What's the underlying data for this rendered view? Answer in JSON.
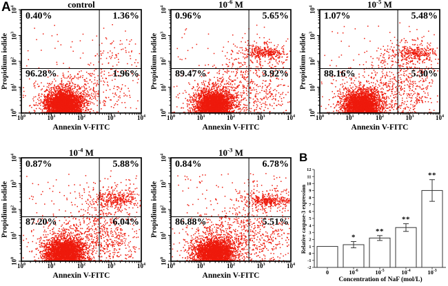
{
  "figure": {
    "panel_a_label": "A",
    "panel_b_label": "B"
  },
  "colors": {
    "dot": "#ee1a0c",
    "axis": "#000000",
    "bar_fill": "#ffffff",
    "bar_stroke": "#333333"
  },
  "chart_data": [
    {
      "type": "scatter",
      "title": "control",
      "xlabel": "Annexin V-FITC",
      "ylabel": "Propidium iodide",
      "x_scale": "log",
      "y_scale": "log",
      "xlim": [
        1,
        10000
      ],
      "ylim": [
        1,
        10000
      ],
      "quadrants": {
        "ul": "0.40%",
        "ur": "1.36%",
        "ll": "96.28%",
        "lr": "1.96%"
      }
    },
    {
      "type": "scatter",
      "title": "10^-6 M",
      "xlabel": "Annexin V-FITC",
      "ylabel": "Propidium iodide",
      "x_scale": "log",
      "y_scale": "log",
      "xlim": [
        1,
        10000
      ],
      "ylim": [
        1,
        10000
      ],
      "quadrants": {
        "ul": "0.96%",
        "ur": "5.65%",
        "ll": "89.47%",
        "lr": "3.92%"
      }
    },
    {
      "type": "scatter",
      "title": "10^-5 M",
      "xlabel": "Annexin V-FITC",
      "ylabel": "Propidium iodide",
      "x_scale": "log",
      "y_scale": "log",
      "xlim": [
        1,
        10000
      ],
      "ylim": [
        1,
        10000
      ],
      "quadrants": {
        "ul": "1.07%",
        "ur": "5.48%",
        "ll": "88.16%",
        "lr": "5.30%"
      }
    },
    {
      "type": "scatter",
      "title": "10^-4 M",
      "xlabel": "Annexin V-FITC",
      "ylabel": "Propidium iodide",
      "x_scale": "log",
      "y_scale": "log",
      "xlim": [
        1,
        10000
      ],
      "ylim": [
        1,
        10000
      ],
      "quadrants": {
        "ul": "0.87%",
        "ur": "5.88%",
        "ll": "87.20%",
        "lr": "6.04%"
      }
    },
    {
      "type": "scatter",
      "title": "10^-3 M",
      "xlabel": "Annexin V-FITC",
      "ylabel": "Propidium iodide",
      "x_scale": "log",
      "y_scale": "log",
      "xlim": [
        1,
        10000
      ],
      "ylim": [
        1,
        10000
      ],
      "quadrants": {
        "ul": "0.84%",
        "ur": "6.78%",
        "ll": "86.88%",
        "lr": "5.51%"
      }
    },
    {
      "type": "bar",
      "title": "",
      "categories": [
        "0",
        "10^-6",
        "10^-5",
        "10^-4",
        "10^-3"
      ],
      "values": [
        1.0,
        1.25,
        2.2,
        3.7,
        9.0
      ],
      "errors": [
        0,
        0.45,
        0.35,
        0.55,
        1.55
      ],
      "significance": [
        "",
        "*",
        "**",
        "**",
        "**"
      ],
      "xlabel": "Concentration of NaF (mol/L)",
      "ylabel": "Relative caspase-3 expression",
      "ylim": [
        -2,
        12
      ],
      "ytick_step": 1,
      "grid": false,
      "legend": false
    }
  ],
  "panel_a": {
    "tick_exponents": [
      0,
      1,
      2,
      3,
      4
    ],
    "log_range": [
      0,
      4
    ],
    "quadrant": {
      "x_log": 2.6,
      "y_log": 1.72
    },
    "plots": [
      {
        "seed": 101,
        "uniform_n": 70,
        "clusters": [
          [
            1.42,
            0.3,
            0.3,
            0.26,
            3000
          ],
          [
            1.55,
            0.55,
            0.55,
            0.45,
            600
          ],
          [
            2.2,
            1.15,
            0.5,
            0.45,
            110
          ],
          [
            3.15,
            2.45,
            0.42,
            0.38,
            55
          ],
          [
            3.35,
            0.9,
            0.35,
            0.55,
            40
          ]
        ]
      },
      {
        "seed": 202,
        "uniform_n": 100,
        "clusters": [
          [
            1.42,
            0.3,
            0.3,
            0.26,
            2700
          ],
          [
            1.55,
            0.55,
            0.55,
            0.45,
            650
          ],
          [
            2.5,
            1.6,
            0.5,
            0.5,
            120
          ],
          [
            3.15,
            2.33,
            0.35,
            0.12,
            240
          ],
          [
            3.0,
            2.3,
            0.5,
            0.33,
            140
          ],
          [
            3.1,
            0.8,
            0.45,
            0.55,
            190
          ]
        ]
      },
      {
        "seed": 303,
        "uniform_n": 110,
        "clusters": [
          [
            1.42,
            0.3,
            0.3,
            0.26,
            2650
          ],
          [
            1.55,
            0.55,
            0.55,
            0.45,
            650
          ],
          [
            2.5,
            1.6,
            0.5,
            0.5,
            130
          ],
          [
            3.2,
            2.3,
            0.35,
            0.15,
            230
          ],
          [
            3.0,
            2.3,
            0.5,
            0.35,
            150
          ],
          [
            3.1,
            0.75,
            0.45,
            0.55,
            240
          ]
        ]
      },
      {
        "seed": 404,
        "uniform_n": 120,
        "clusters": [
          [
            1.45,
            0.3,
            0.32,
            0.27,
            2600
          ],
          [
            1.6,
            0.6,
            0.58,
            0.48,
            700
          ],
          [
            2.5,
            1.5,
            0.55,
            0.5,
            150
          ],
          [
            3.2,
            2.4,
            0.38,
            0.16,
            250
          ],
          [
            3.05,
            2.35,
            0.55,
            0.35,
            150
          ],
          [
            3.1,
            0.8,
            0.48,
            0.55,
            260
          ]
        ]
      },
      {
        "seed": 505,
        "uniform_n": 130,
        "clusters": [
          [
            1.45,
            0.3,
            0.32,
            0.27,
            2550
          ],
          [
            1.6,
            0.6,
            0.58,
            0.48,
            700
          ],
          [
            2.4,
            1.3,
            0.55,
            0.5,
            150
          ],
          [
            3.3,
            2.33,
            0.42,
            0.11,
            290
          ],
          [
            3.1,
            2.4,
            0.55,
            0.33,
            160
          ],
          [
            3.15,
            0.8,
            0.5,
            0.55,
            230
          ]
        ]
      }
    ]
  }
}
